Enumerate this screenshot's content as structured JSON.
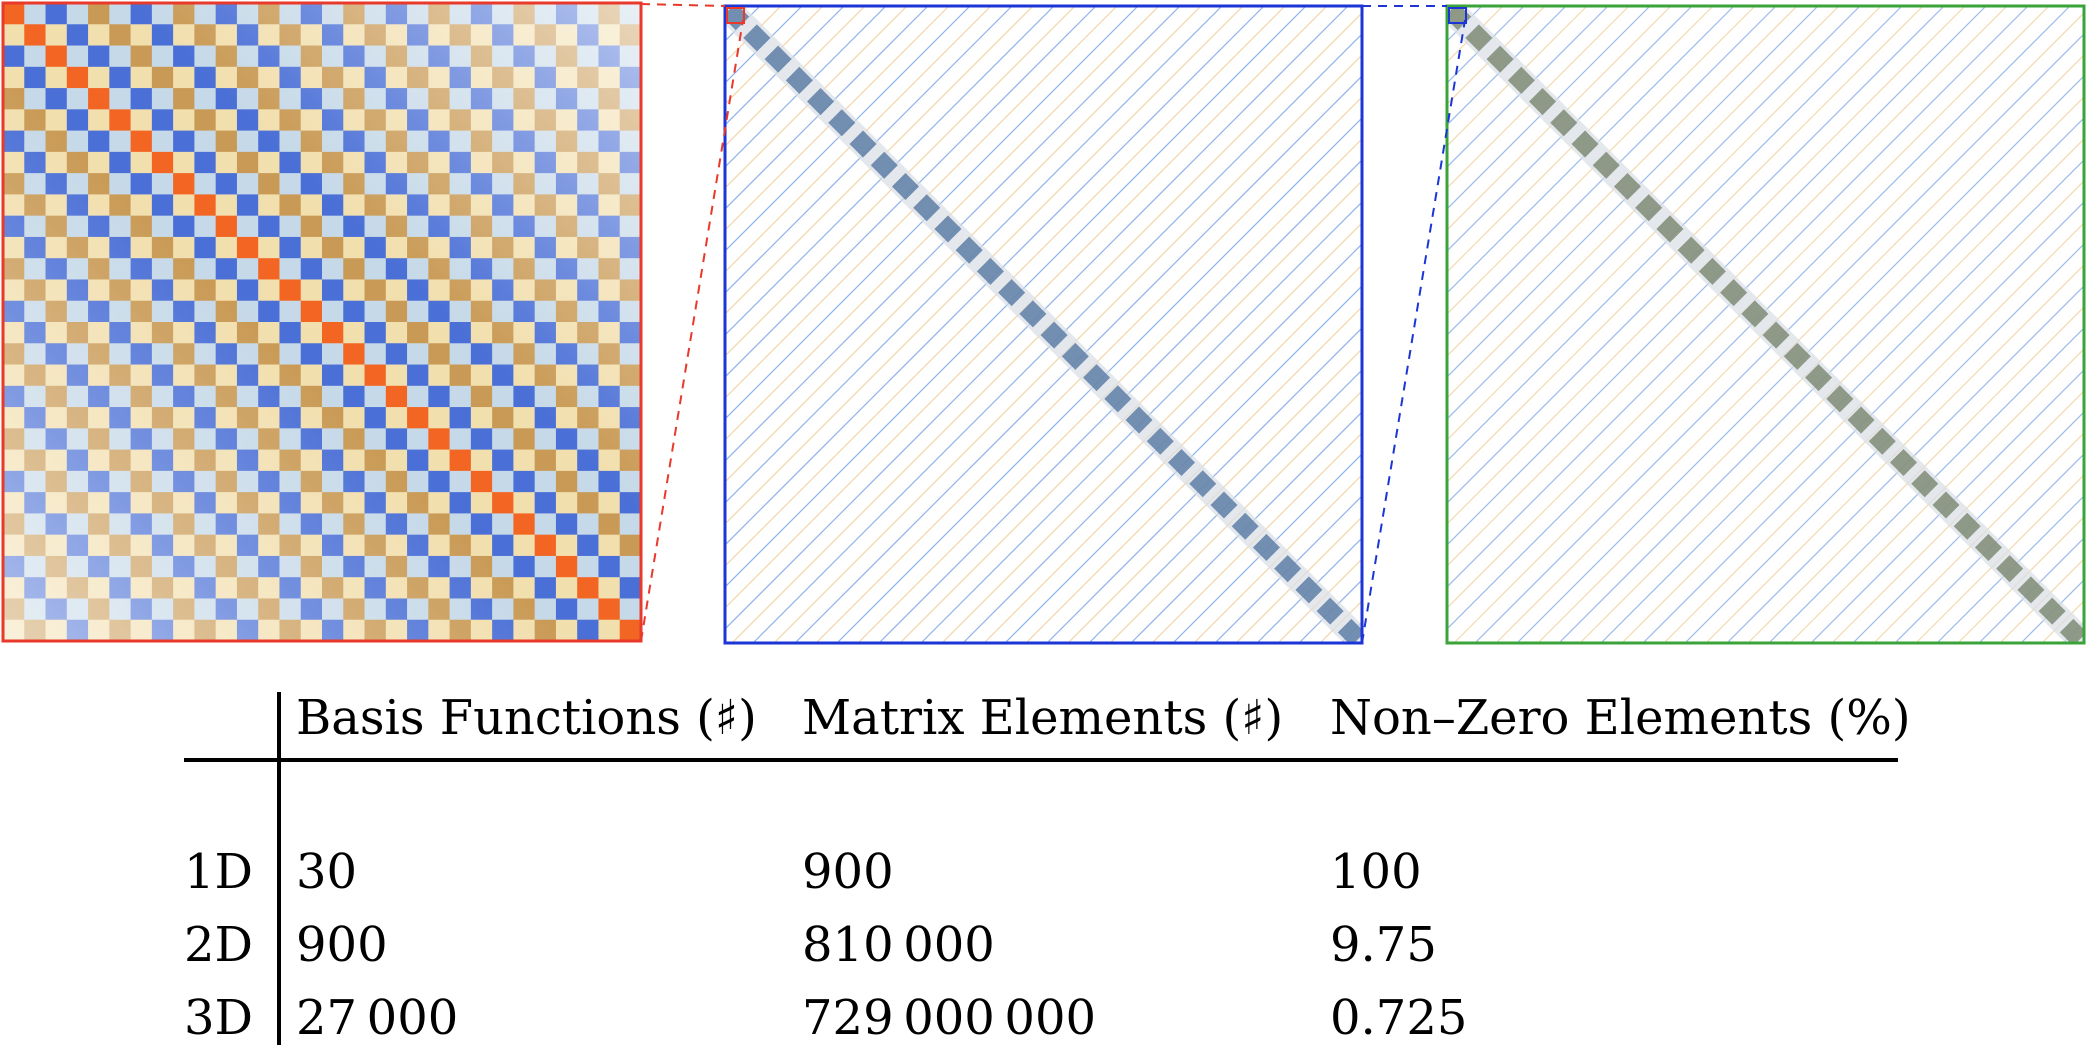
{
  "figure": {
    "panels": [
      {
        "id": "dense",
        "frame_color": "#e8392a",
        "checker_dark_a": "#4a6fd6",
        "checker_dark_b": "#c99a55",
        "checker_light_a": "#c6d9e8",
        "checker_light_b": "#f2dfae",
        "diagonal_color": "#f26522",
        "cells": 30
      },
      {
        "id": "block-sparse",
        "frame_color": "#1b35d6",
        "hatch_a": "#7aa7e6",
        "hatch_b": "#f3cf9e",
        "diagonal_color": "#5e7ea6",
        "blocks": 30
      },
      {
        "id": "very-sparse",
        "frame_color": "#3aa33a",
        "hatch_a": "#8ab0e6",
        "hatch_b": "#f3d5a6",
        "diagonal_color": "#7f8b76",
        "blocks": 30
      }
    ],
    "connector_colors": {
      "red": "#e8392a",
      "blue": "#1b35d6"
    }
  },
  "table": {
    "headers": [
      "",
      "Basis Functions (♯)",
      "Matrix Elements (♯)",
      "Non–Zero Elements (%)"
    ],
    "rows": [
      {
        "label": "1D",
        "basis": "30",
        "elements": "900",
        "nonzero": "100"
      },
      {
        "label": "2D",
        "basis": "900",
        "elements": "810 000",
        "nonzero": "9.75"
      },
      {
        "label": "3D",
        "basis": "27 000",
        "elements": "729 000 000",
        "nonzero": "0.725"
      }
    ]
  }
}
